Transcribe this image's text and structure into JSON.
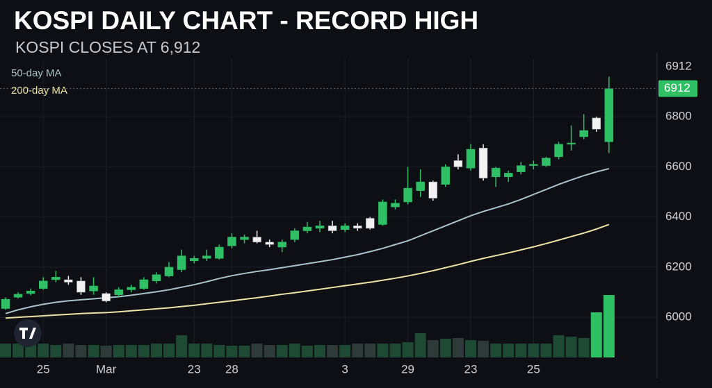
{
  "chart_data": {
    "type": "candlestick",
    "title": "KOSPI DAILY CHART - RECORD HIGH",
    "subtitle": "KOSPI CLOSES AT 6,912",
    "categories": [
      null,
      null,
      null,
      "25",
      null,
      null,
      null,
      null,
      "Mar",
      null,
      null,
      null,
      null,
      null,
      null,
      "23",
      null,
      null,
      "28",
      null,
      null,
      null,
      null,
      null,
      null,
      null,
      null,
      "3",
      null,
      null,
      null,
      null,
      "29",
      null,
      null,
      null,
      null,
      "23",
      null,
      null,
      null,
      null,
      "25",
      null,
      null,
      null,
      null,
      null,
      null
    ],
    "open": [
      6035,
      6080,
      6095,
      6115,
      6150,
      6150,
      6145,
      6105,
      6095,
      6090,
      6110,
      6115,
      6145,
      6165,
      6190,
      6225,
      6235,
      6235,
      6285,
      6310,
      6320,
      6300,
      6280,
      6310,
      6345,
      6355,
      6365,
      6350,
      6365,
      6395,
      6370,
      6440,
      6460,
      6505,
      6540,
      6530,
      6625,
      6595,
      6675,
      6560,
      6560,
      6580,
      6605,
      6605,
      6640,
      6690,
      6720,
      6795,
      6700
    ],
    "high": [
      6080,
      6100,
      6115,
      6160,
      6185,
      6165,
      6160,
      6160,
      6100,
      6120,
      6130,
      6160,
      6180,
      6220,
      6270,
      6245,
      6270,
      6290,
      6335,
      6330,
      6345,
      6310,
      6310,
      6355,
      6380,
      6385,
      6385,
      6375,
      6375,
      6400,
      6470,
      6470,
      6600,
      6590,
      6545,
      6610,
      6650,
      6690,
      6690,
      6600,
      6585,
      6620,
      6625,
      6640,
      6700,
      6765,
      6810,
      6800,
      6960
    ],
    "low": [
      6030,
      6075,
      6088,
      6110,
      6140,
      6130,
      6090,
      6090,
      6060,
      6080,
      6100,
      6110,
      6135,
      6160,
      6180,
      6215,
      6225,
      6230,
      6275,
      6295,
      6295,
      6280,
      6260,
      6300,
      6335,
      6340,
      6335,
      6340,
      6345,
      6350,
      6365,
      6430,
      6450,
      6480,
      6465,
      6520,
      6590,
      6585,
      6545,
      6520,
      6540,
      6570,
      6590,
      6600,
      6630,
      6665,
      6710,
      6740,
      6655
    ],
    "close": [
      6072,
      6092,
      6105,
      6145,
      6160,
      6140,
      6100,
      6125,
      6065,
      6110,
      6120,
      6150,
      6170,
      6200,
      6245,
      6235,
      6245,
      6280,
      6320,
      6320,
      6300,
      6290,
      6300,
      6345,
      6360,
      6365,
      6345,
      6365,
      6355,
      6355,
      6460,
      6455,
      6515,
      6540,
      6475,
      6600,
      6600,
      6670,
      6555,
      6595,
      6575,
      6605,
      6610,
      6635,
      6690,
      6695,
      6745,
      6750,
      6912
    ],
    "volume": [
      20,
      20,
      37,
      20,
      18,
      20,
      18,
      18,
      17,
      18,
      18,
      18,
      20,
      20,
      32,
      20,
      20,
      18,
      17,
      17,
      20,
      18,
      18,
      20,
      17,
      18,
      18,
      18,
      20,
      20,
      20,
      20,
      22,
      35,
      25,
      27,
      28,
      25,
      24,
      20,
      20,
      20,
      20,
      20,
      32,
      30,
      28,
      65,
      90
    ],
    "series": [
      {
        "name": "50-day MA",
        "color": "#a9c4cc",
        "values": [
          6015,
          6030,
          6042,
          6052,
          6060,
          6066,
          6070,
          6074,
          6078,
          6082,
          6088,
          6095,
          6102,
          6110,
          6120,
          6130,
          6142,
          6155,
          6166,
          6175,
          6183,
          6190,
          6198,
          6206,
          6214,
          6222,
          6230,
          6240,
          6250,
          6262,
          6275,
          6290,
          6305,
          6325,
          6345,
          6365,
          6385,
          6405,
          6422,
          6437,
          6452,
          6470,
          6490,
          6510,
          6530,
          6548,
          6565,
          6580,
          6593
        ]
      },
      {
        "name": "200-day MA",
        "color": "#efe3a6",
        "values": [
          5997,
          6000,
          6003,
          6006,
          6009,
          6012,
          6015,
          6017,
          6019,
          6022,
          6026,
          6030,
          6034,
          6038,
          6043,
          6048,
          6054,
          6060,
          6066,
          6072,
          6078,
          6085,
          6092,
          6098,
          6105,
          6112,
          6119,
          6126,
          6133,
          6140,
          6148,
          6156,
          6165,
          6175,
          6186,
          6198,
          6210,
          6223,
          6235,
          6246,
          6257,
          6269,
          6281,
          6294,
          6308,
          6322,
          6336,
          6352,
          6370
        ]
      }
    ],
    "up_color": "#2fbf64",
    "down_color": "#f2f2f2",
    "last_close": 6912,
    "ylim": [
      5840,
      7030
    ],
    "yticks": [
      6000,
      6200,
      6400,
      6600,
      6800
    ],
    "grid": true
  }
}
